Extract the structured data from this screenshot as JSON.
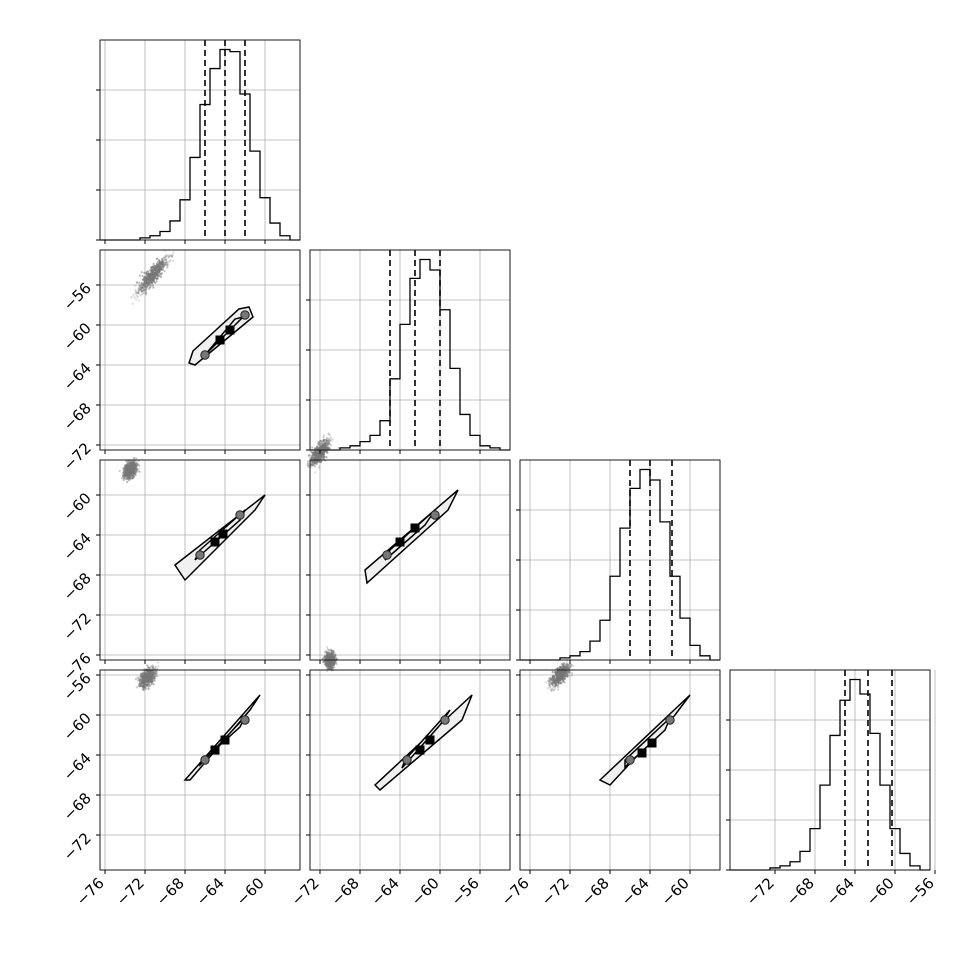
{
  "chart_data": {
    "type": "corner",
    "grid": true,
    "dimensions": 4,
    "marginal_histograms": [
      {
        "parameter_index": 0,
        "bin_edges": [
          -76.5,
          -75.5,
          -74.5,
          -73.5,
          -72.5,
          -71.5,
          -70.5,
          -69.5,
          -68.5,
          -67.5,
          -66.5,
          -65.5,
          -64.5,
          -63.5,
          -62.5,
          -61.5,
          -60.5,
          -59.5,
          -58.5,
          -57.5,
          -56.5
        ],
        "counts": [
          0.0,
          0.0,
          0.0,
          0.0,
          0.01,
          0.02,
          0.04,
          0.09,
          0.19,
          0.39,
          0.64,
          0.81,
          0.9,
          0.89,
          0.69,
          0.42,
          0.2,
          0.08,
          0.02,
          0.0
        ],
        "quantiles": [
          -66.0,
          -64.0,
          -62.0
        ]
      },
      {
        "parameter_index": 1,
        "bin_edges": [
          -73,
          -72,
          -71,
          -70,
          -69,
          -68,
          -67,
          -66,
          -65,
          -64,
          -63,
          -62,
          -61,
          -60,
          -59,
          -58,
          -57,
          -56,
          -55,
          -54,
          -53
        ],
        "counts": [
          0.0,
          0.0,
          0.0,
          0.01,
          0.02,
          0.04,
          0.07,
          0.14,
          0.34,
          0.6,
          0.82,
          0.91,
          0.86,
          0.67,
          0.39,
          0.17,
          0.07,
          0.02,
          0.01,
          0.0
        ],
        "quantiles": [
          -65.0,
          -62.5,
          -60.0
        ]
      },
      {
        "parameter_index": 2,
        "bin_edges": [
          -77,
          -76,
          -75,
          -74,
          -73,
          -72,
          -71,
          -70,
          -69,
          -68,
          -67,
          -66,
          -65,
          -64,
          -63,
          -62,
          -61,
          -60,
          -59,
          -58,
          -57
        ],
        "counts": [
          0.0,
          0.0,
          0.0,
          0.0,
          0.01,
          0.02,
          0.04,
          0.09,
          0.19,
          0.4,
          0.63,
          0.82,
          0.91,
          0.86,
          0.66,
          0.4,
          0.2,
          0.07,
          0.02,
          0.0
        ],
        "quantiles": [
          -66.0,
          -64.0,
          -61.8
        ]
      },
      {
        "parameter_index": 3,
        "bin_edges": [
          -76.5,
          -75.5,
          -74.5,
          -73.5,
          -72.5,
          -71.5,
          -70.5,
          -69.5,
          -68.5,
          -67.5,
          -66.5,
          -65.5,
          -64.5,
          -63.5,
          -62.5,
          -61.5,
          -60.5,
          -59.5,
          -58.5,
          -57.5,
          -56.5
        ],
        "counts": [
          0.0,
          0.0,
          0.0,
          0.0,
          0.01,
          0.02,
          0.04,
          0.09,
          0.2,
          0.41,
          0.65,
          0.82,
          0.92,
          0.85,
          0.66,
          0.41,
          0.2,
          0.08,
          0.02,
          0.0
        ],
        "quantiles": [
          -65.0,
          -62.7,
          -60.3
        ]
      }
    ],
    "axes": {
      "x_ranges": [
        [
          -76.5,
          -56.5
        ],
        [
          -73,
          -53
        ],
        [
          -77,
          -57
        ],
        [
          -76.5,
          -56.5
        ]
      ],
      "y_ranges": [
        null,
        [
          -72.5,
          -52.5
        ],
        [
          -76.5,
          -56.5
        ],
        [
          -75.5,
          -55.5
        ]
      ],
      "x_ticks": [
        [
          -76,
          -72,
          -68,
          -64,
          -60
        ],
        [
          -72,
          -68,
          -64,
          -60,
          -56
        ],
        [
          -76,
          -72,
          -68,
          -64,
          -60
        ],
        [
          -72,
          -68,
          -64,
          -60,
          -56
        ]
      ],
      "y_ticks": [
        null,
        [
          -72,
          -68,
          -64,
          -60,
          -56
        ],
        [
          -76,
          -72,
          -68,
          -64,
          -60
        ],
        [
          -72,
          -68,
          -64,
          -60,
          -56
        ]
      ]
    },
    "pair_panels": [
      {
        "row": 1,
        "col": 0,
        "samples_range": [
          [
            -73,
            -57
          ],
          [
            -69.5,
            -53
          ]
        ],
        "contour_outer": [
          [
            -67,
            -64
          ],
          [
            -61.2,
            -59.2
          ],
          [
            -61.6,
            -58.2
          ],
          [
            -62.6,
            -58.4
          ],
          [
            -67.2,
            -62.6
          ],
          [
            -67.6,
            -63.8
          ]
        ],
        "contour_mid": [
          [
            -65.5,
            -62.5
          ],
          [
            -62.2,
            -59.2
          ],
          [
            -63.0,
            -59.4
          ],
          [
            -66.0,
            -63.0
          ]
        ],
        "quantile_markers": [
          [
            -66.0,
            -63.0
          ],
          [
            -62.0,
            -59.0
          ]
        ],
        "density_peaks": [
          [
            -64.5,
            -61.5
          ],
          [
            -63.5,
            -60.5
          ]
        ]
      },
      {
        "row": 2,
        "col": 0,
        "samples_range": [
          [
            -74,
            -58
          ],
          [
            -73,
            -57
          ]
        ],
        "contour_outer": [
          [
            -69,
            -67
          ],
          [
            -60,
            -60
          ],
          [
            -61,
            -61.5
          ],
          [
            -68,
            -68.5
          ]
        ],
        "contour_mid": [
          [
            -66.5,
            -65.5
          ],
          [
            -62,
            -61.5
          ],
          [
            -62.5,
            -62.5
          ],
          [
            -67,
            -66.5
          ]
        ],
        "quantile_markers": [
          [
            -66.5,
            -66.0
          ],
          [
            -62.5,
            -62.0
          ]
        ],
        "density_peaks": [
          [
            -65.0,
            -64.7
          ],
          [
            -64.2,
            -63.9
          ]
        ]
      },
      {
        "row": 2,
        "col": 1,
        "samples_range": [
          [
            -71,
            -54.5
          ],
          [
            -73,
            -57
          ]
        ],
        "contour_outer": [
          [
            -67.5,
            -67.5
          ],
          [
            -58.2,
            -59.5
          ],
          [
            -59.2,
            -61.5
          ],
          [
            -67.3,
            -68.8
          ]
        ],
        "contour_mid": [
          [
            -65.0,
            -65.5
          ],
          [
            -60.5,
            -61.5
          ],
          [
            -61.5,
            -63.0
          ],
          [
            -65.5,
            -66.5
          ]
        ],
        "quantile_markers": [
          [
            -65.3,
            -66.0
          ],
          [
            -60.5,
            -62.0
          ]
        ],
        "density_peaks": [
          [
            -64.0,
            -64.7
          ],
          [
            -62.5,
            -63.3
          ]
        ]
      },
      {
        "row": 3,
        "col": 0,
        "samples_range": [
          [
            -72.5,
            -57
          ],
          [
            -71,
            -55.5
          ]
        ],
        "contour_outer": [
          [
            -68,
            -66.5
          ],
          [
            -60.5,
            -58
          ],
          [
            -61.5,
            -59.5
          ],
          [
            -67.5,
            -66.5
          ]
        ],
        "contour_mid": [
          [
            -66.5,
            -65
          ],
          [
            -62,
            -60.2
          ],
          [
            -62.5,
            -61.2
          ],
          [
            -66.5,
            -64.8
          ]
        ],
        "quantile_markers": [
          [
            -66.0,
            -64.5
          ],
          [
            -62.0,
            -60.5
          ]
        ],
        "density_peaks": [
          [
            -65.0,
            -63.5
          ],
          [
            -64.0,
            -62.5
          ]
        ]
      },
      {
        "row": 3,
        "col": 1,
        "samples_range": [
          [
            -71,
            -54
          ],
          [
            -71,
            -55
          ]
        ],
        "contour_outer": [
          [
            -66.5,
            -67.0
          ],
          [
            -56.8,
            -58.0
          ],
          [
            -57.8,
            -60.5
          ],
          [
            -66.0,
            -67.5
          ]
        ],
        "contour_mid": [
          [
            -63.5,
            -64.5
          ],
          [
            -59.0,
            -59.5
          ],
          [
            -60.0,
            -61.0
          ],
          [
            -63.8,
            -65.3
          ]
        ],
        "quantile_markers": [
          [
            -63.3,
            -64.5
          ],
          [
            -59.5,
            -60.5
          ]
        ],
        "density_peaks": [
          [
            -62.0,
            -63.5
          ],
          [
            -61.0,
            -62.5
          ]
        ]
      },
      {
        "row": 3,
        "col": 2,
        "samples_range": [
          [
            -74,
            -57
          ],
          [
            -72,
            -55
          ]
        ],
        "contour_outer": [
          [
            -69,
            -66.5
          ],
          [
            -60,
            -58
          ],
          [
            -61.5,
            -60
          ],
          [
            -68,
            -67
          ]
        ],
        "contour_mid": [
          [
            -66.5,
            -64.5
          ],
          [
            -62,
            -60.3
          ],
          [
            -62.5,
            -61.5
          ],
          [
            -66.5,
            -65.2
          ]
        ],
        "quantile_markers": [
          [
            -66.0,
            -64.5
          ],
          [
            -62.0,
            -60.5
          ]
        ],
        "density_peaks": [
          [
            -64.8,
            -63.8
          ],
          [
            -63.8,
            -62.8
          ]
        ]
      }
    ]
  }
}
